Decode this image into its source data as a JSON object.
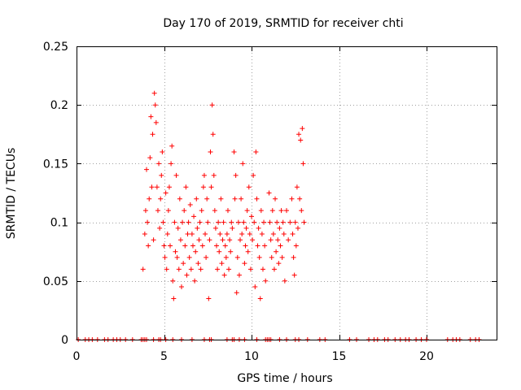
{
  "chart_data": {
    "type": "scatter",
    "title": "Day 170 of 2019, SRMTID for receiver chti",
    "xlabel": "GPS time / hours",
    "ylabel": "SRMTID / TECUs",
    "xlim": [
      0,
      24
    ],
    "ylim": [
      0,
      0.25
    ],
    "xticks": [
      0,
      5,
      10,
      15,
      20
    ],
    "xtick_labels": [
      "0",
      "5",
      "10",
      "15",
      "20"
    ],
    "yticks": [
      0,
      0.05,
      0.1,
      0.15,
      0.2,
      0.25
    ],
    "ytick_labels": [
      "0",
      "0.05",
      "0.1",
      "0.15",
      "0.2",
      "0.25"
    ],
    "grid": true,
    "legend": "none",
    "marker": "plus",
    "color": "#ff0000",
    "series": [
      {
        "values": [
          [
            3.8,
            0.06
          ],
          [
            3.9,
            0.09
          ],
          [
            3.95,
            0.11
          ],
          [
            4.0,
            0.145
          ],
          [
            4.05,
            0.1
          ],
          [
            4.1,
            0.08
          ],
          [
            4.15,
            0.12
          ],
          [
            4.2,
            0.155
          ],
          [
            4.25,
            0.19
          ],
          [
            4.3,
            0.13
          ],
          [
            4.35,
            0.175
          ],
          [
            4.4,
            0.085
          ],
          [
            4.45,
            0.21
          ],
          [
            4.5,
            0.2
          ],
          [
            4.55,
            0.185
          ],
          [
            4.6,
            0.13
          ],
          [
            4.65,
            0.11
          ],
          [
            4.7,
            0.15
          ],
          [
            4.75,
            0.095
          ],
          [
            4.8,
            0.12
          ],
          [
            4.85,
            0.14
          ],
          [
            4.9,
            0.16
          ],
          [
            4.95,
            0.1
          ],
          [
            5.0,
            0.08
          ],
          [
            5.05,
            0.07
          ],
          [
            5.1,
            0.125
          ],
          [
            5.15,
            0.06
          ],
          [
            5.2,
            0.09
          ],
          [
            5.25,
            0.11
          ],
          [
            5.3,
            0.13
          ],
          [
            5.35,
            0.08
          ],
          [
            5.4,
            0.15
          ],
          [
            5.45,
            0.165
          ],
          [
            5.5,
            0.05
          ],
          [
            5.55,
            0.035
          ],
          [
            5.6,
            0.1
          ],
          [
            5.65,
            0.075
          ],
          [
            5.7,
            0.14
          ],
          [
            5.75,
            0.07
          ],
          [
            5.8,
            0.095
          ],
          [
            5.85,
            0.06
          ],
          [
            5.9,
            0.12
          ],
          [
            5.95,
            0.085
          ],
          [
            6.0,
            0.045
          ],
          [
            6.05,
            0.1
          ],
          [
            6.1,
            0.065
          ],
          [
            6.15,
            0.11
          ],
          [
            6.2,
            0.08
          ],
          [
            6.25,
            0.13
          ],
          [
            6.3,
            0.055
          ],
          [
            6.35,
            0.09
          ],
          [
            6.4,
            0.1
          ],
          [
            6.45,
            0.07
          ],
          [
            6.5,
            0.115
          ],
          [
            6.55,
            0.06
          ],
          [
            6.6,
            0.09
          ],
          [
            6.65,
            0.08
          ],
          [
            6.7,
            0.105
          ],
          [
            6.75,
            0.05
          ],
          [
            6.8,
            0.075
          ],
          [
            6.85,
            0.12
          ],
          [
            6.9,
            0.095
          ],
          [
            6.95,
            0.065
          ],
          [
            7.0,
            0.085
          ],
          [
            7.05,
            0.1
          ],
          [
            7.1,
            0.06
          ],
          [
            7.15,
            0.11
          ],
          [
            7.2,
            0.08
          ],
          [
            7.25,
            0.13
          ],
          [
            7.3,
            0.14
          ],
          [
            7.35,
            0.09
          ],
          [
            7.4,
            0.07
          ],
          [
            7.45,
            0.12
          ],
          [
            7.5,
            0.1
          ],
          [
            7.55,
            0.035
          ],
          [
            7.6,
            0.085
          ],
          [
            7.65,
            0.16
          ],
          [
            7.7,
            0.13
          ],
          [
            7.75,
            0.2
          ],
          [
            7.8,
            0.175
          ],
          [
            7.85,
            0.14
          ],
          [
            7.9,
            0.11
          ],
          [
            7.95,
            0.095
          ],
          [
            8.0,
            0.08
          ],
          [
            8.05,
            0.06
          ],
          [
            8.1,
            0.1
          ],
          [
            8.15,
            0.075
          ],
          [
            8.2,
            0.09
          ],
          [
            8.25,
            0.12
          ],
          [
            8.3,
            0.065
          ],
          [
            8.35,
            0.085
          ],
          [
            8.4,
            0.1
          ],
          [
            8.45,
            0.055
          ],
          [
            8.5,
            0.08
          ],
          [
            8.55,
            0.07
          ],
          [
            8.6,
            0.09
          ],
          [
            8.65,
            0.11
          ],
          [
            8.7,
            0.06
          ],
          [
            8.75,
            0.085
          ],
          [
            8.8,
            0.075
          ],
          [
            8.85,
            0.1
          ],
          [
            8.9,
            0.095
          ],
          [
            9.0,
            0.16
          ],
          [
            9.05,
            0.12
          ],
          [
            9.1,
            0.14
          ],
          [
            9.15,
            0.04
          ],
          [
            9.2,
            0.07
          ],
          [
            9.25,
            0.1
          ],
          [
            9.3,
            0.055
          ],
          [
            9.35,
            0.085
          ],
          [
            9.4,
            0.12
          ],
          [
            9.45,
            0.09
          ],
          [
            9.5,
            0.15
          ],
          [
            9.55,
            0.1
          ],
          [
            9.6,
            0.065
          ],
          [
            9.65,
            0.08
          ],
          [
            9.7,
            0.095
          ],
          [
            9.75,
            0.11
          ],
          [
            9.8,
            0.075
          ],
          [
            9.85,
            0.13
          ],
          [
            9.9,
            0.09
          ],
          [
            9.95,
            0.06
          ],
          [
            10.0,
            0.105
          ],
          [
            10.05,
            0.085
          ],
          [
            10.1,
            0.14
          ],
          [
            10.15,
            0.1
          ],
          [
            10.2,
            0.045
          ],
          [
            10.25,
            0.16
          ],
          [
            10.3,
            0.12
          ],
          [
            10.35,
            0.08
          ],
          [
            10.4,
            0.095
          ],
          [
            10.45,
            0.07
          ],
          [
            10.5,
            0.035
          ],
          [
            10.55,
            0.11
          ],
          [
            10.6,
            0.09
          ],
          [
            10.65,
            0.06
          ],
          [
            10.7,
            0.1
          ],
          [
            10.75,
            0.08
          ],
          [
            10.8,
            0.05
          ],
          [
            11.0,
            0.125
          ],
          [
            11.05,
            0.1
          ],
          [
            11.1,
            0.085
          ],
          [
            11.15,
            0.07
          ],
          [
            11.2,
            0.11
          ],
          [
            11.25,
            0.09
          ],
          [
            11.3,
            0.06
          ],
          [
            11.35,
            0.12
          ],
          [
            11.4,
            0.075
          ],
          [
            11.45,
            0.1
          ],
          [
            11.5,
            0.085
          ],
          [
            11.55,
            0.065
          ],
          [
            11.6,
            0.095
          ],
          [
            11.65,
            0.08
          ],
          [
            11.7,
            0.11
          ],
          [
            11.75,
            0.07
          ],
          [
            11.8,
            0.1
          ],
          [
            11.85,
            0.09
          ],
          [
            11.9,
            0.05
          ],
          [
            12.0,
            0.11
          ],
          [
            12.1,
            0.085
          ],
          [
            12.2,
            0.1
          ],
          [
            12.3,
            0.12
          ],
          [
            12.35,
            0.09
          ],
          [
            12.4,
            0.07
          ],
          [
            12.45,
            0.055
          ],
          [
            12.5,
            0.1
          ],
          [
            12.55,
            0.08
          ],
          [
            12.6,
            0.13
          ],
          [
            12.65,
            0.095
          ],
          [
            12.7,
            0.175
          ],
          [
            12.75,
            0.12
          ],
          [
            12.8,
            0.17
          ],
          [
            12.85,
            0.11
          ],
          [
            12.9,
            0.18
          ],
          [
            12.95,
            0.15
          ],
          [
            13.0,
            0.1
          ]
        ]
      }
    ],
    "zero_x": [
      0.1,
      0.5,
      0.7,
      0.9,
      1.2,
      1.6,
      1.8,
      2.1,
      2.3,
      2.5,
      2.8,
      3.2,
      3.7,
      3.8,
      3.9,
      4.0,
      4.4,
      4.7,
      4.8,
      5.1,
      5.5,
      6.0,
      6.6,
      7.3,
      7.6,
      7.7,
      8.6,
      8.9,
      9.0,
      9.3,
      9.6,
      10.3,
      10.8,
      10.9,
      11.0,
      11.1,
      11.6,
      12.0,
      12.5,
      12.7,
      13.2,
      13.9,
      14.2,
      15.6,
      16.0,
      16.7,
      17.0,
      17.2,
      17.6,
      17.8,
      18.2,
      18.5,
      18.8,
      19.0,
      19.4,
      19.7,
      20.0,
      21.2,
      21.5,
      21.7,
      21.9,
      22.5,
      22.8,
      23.0
    ]
  }
}
